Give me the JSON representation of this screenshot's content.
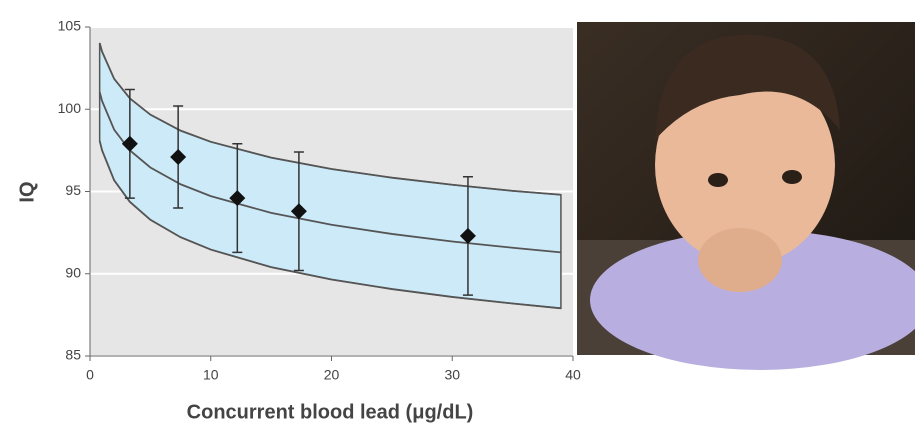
{
  "chart_data": {
    "type": "line",
    "x_label": "Concurrent blood lead (μg/dL)",
    "y_label": "IQ",
    "xlim": [
      0,
      40
    ],
    "xticks": [
      0,
      10,
      20,
      30,
      40
    ],
    "ylim": [
      85,
      105
    ],
    "yticks": [
      85,
      90,
      95,
      100,
      105
    ],
    "grid": true,
    "band_color": "#cdeaf8",
    "series": [
      {
        "color": "#555555",
        "x": [
          0.8,
          1,
          2,
          3.3,
          5,
          7.5,
          10,
          15,
          20,
          25,
          30,
          35,
          39
        ],
        "values": [
          104.03,
          103.5,
          101.85,
          100.66,
          99.67,
          98.7,
          98.02,
          97.06,
          96.37,
          95.84,
          95.41,
          95.04,
          94.8
        ]
      },
      {
        "color": "#555555",
        "x": [
          0.8,
          1,
          2,
          3.3,
          5,
          7.5,
          10,
          15,
          20,
          25,
          30,
          35,
          39
        ],
        "values": [
          101.06,
          100.5,
          98.76,
          97.5,
          96.46,
          95.44,
          94.72,
          93.7,
          92.98,
          92.42,
          91.96,
          91.58,
          91.3
        ]
      },
      {
        "color": "#555555",
        "x": [
          0.8,
          1,
          2,
          3.3,
          5,
          7.5,
          10,
          15,
          20,
          25,
          30,
          35,
          39
        ],
        "values": [
          98.08,
          97.5,
          95.68,
          94.37,
          93.28,
          92.22,
          91.47,
          90.4,
          89.65,
          89.07,
          88.59,
          88.19,
          87.9
        ]
      }
    ],
    "points": {
      "color": "#111111",
      "x": [
        3.3,
        7.3,
        12.2,
        17.3,
        31.3
      ],
      "values": [
        97.9,
        97.1,
        94.6,
        93.8,
        92.3
      ],
      "errors": [
        3.3,
        3.1,
        3.3,
        3.6,
        3.6
      ]
    }
  }
}
